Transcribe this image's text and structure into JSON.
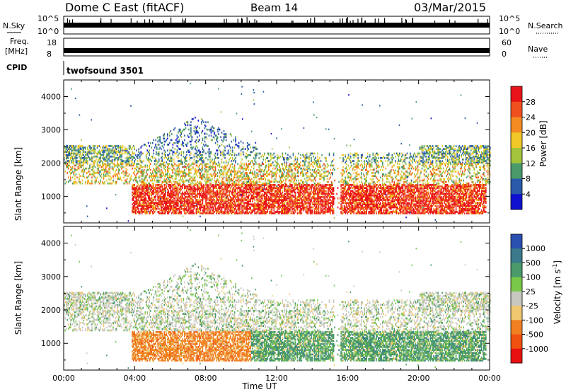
{
  "header": {
    "title": "Dome C East (fitACF)",
    "beam": "Beam 14",
    "date": "03/Mar/2015"
  },
  "aux_panels": {
    "nsky_label": "N.Sky",
    "nsky_ticks": [
      "10^5",
      "10^0"
    ],
    "nsearch_label": "N.Search",
    "freq_label": "Freq.",
    "freq_unit": "[MHz]",
    "freq_ticks": [
      "18",
      "8"
    ],
    "nave_label": "Nave",
    "nave_ticks": [
      "60",
      "0"
    ],
    "cpid_label": "CPID",
    "cpid_value": "twofsound 3501"
  },
  "colorbars": {
    "power": {
      "label": "Power [dB]",
      "ticks": [
        "28",
        "24",
        "20",
        "16",
        "12",
        "8",
        "4"
      ],
      "colors": [
        "#e8141a",
        "#f0501e",
        "#f48a22",
        "#f0c828",
        "#a4c43c",
        "#4a9a6a",
        "#2a5aa8",
        "#1010d0"
      ]
    },
    "velocity": {
      "label": "Velocity [m s",
      "label_sup": "-1",
      "label_end": "]",
      "ticks": [
        "1000",
        "500",
        "100",
        "25",
        "-25",
        "-100",
        "-500",
        "-1000"
      ],
      "colors": [
        "#2a50b0",
        "#3a7a8a",
        "#4a9a6a",
        "#7ac84a",
        "#c8c8c0",
        "#f0c870",
        "#f08020",
        "#f05010",
        "#e81010"
      ]
    }
  },
  "chart_data": [
    {
      "type": "heatmap",
      "title": "Power",
      "ylabel": "Slant Range [km]",
      "yticks": [
        "1000",
        "2000",
        "3000",
        "4000"
      ],
      "ylim": [
        200,
        4500
      ],
      "xlim": [
        0,
        24
      ],
      "xticks": [],
      "grid": false
    },
    {
      "type": "heatmap",
      "title": "Velocity",
      "ylabel": "Slant Range [km]",
      "yticks": [
        "1000",
        "2000",
        "3000",
        "4000"
      ],
      "ylim": [
        200,
        4500
      ],
      "xlim": [
        0,
        24
      ],
      "xticks": [
        "00:00",
        "04:00",
        "08:00",
        "12:00",
        "16:00",
        "20:00",
        "00:00"
      ],
      "xlabel": "Time UT",
      "grid": false
    }
  ]
}
